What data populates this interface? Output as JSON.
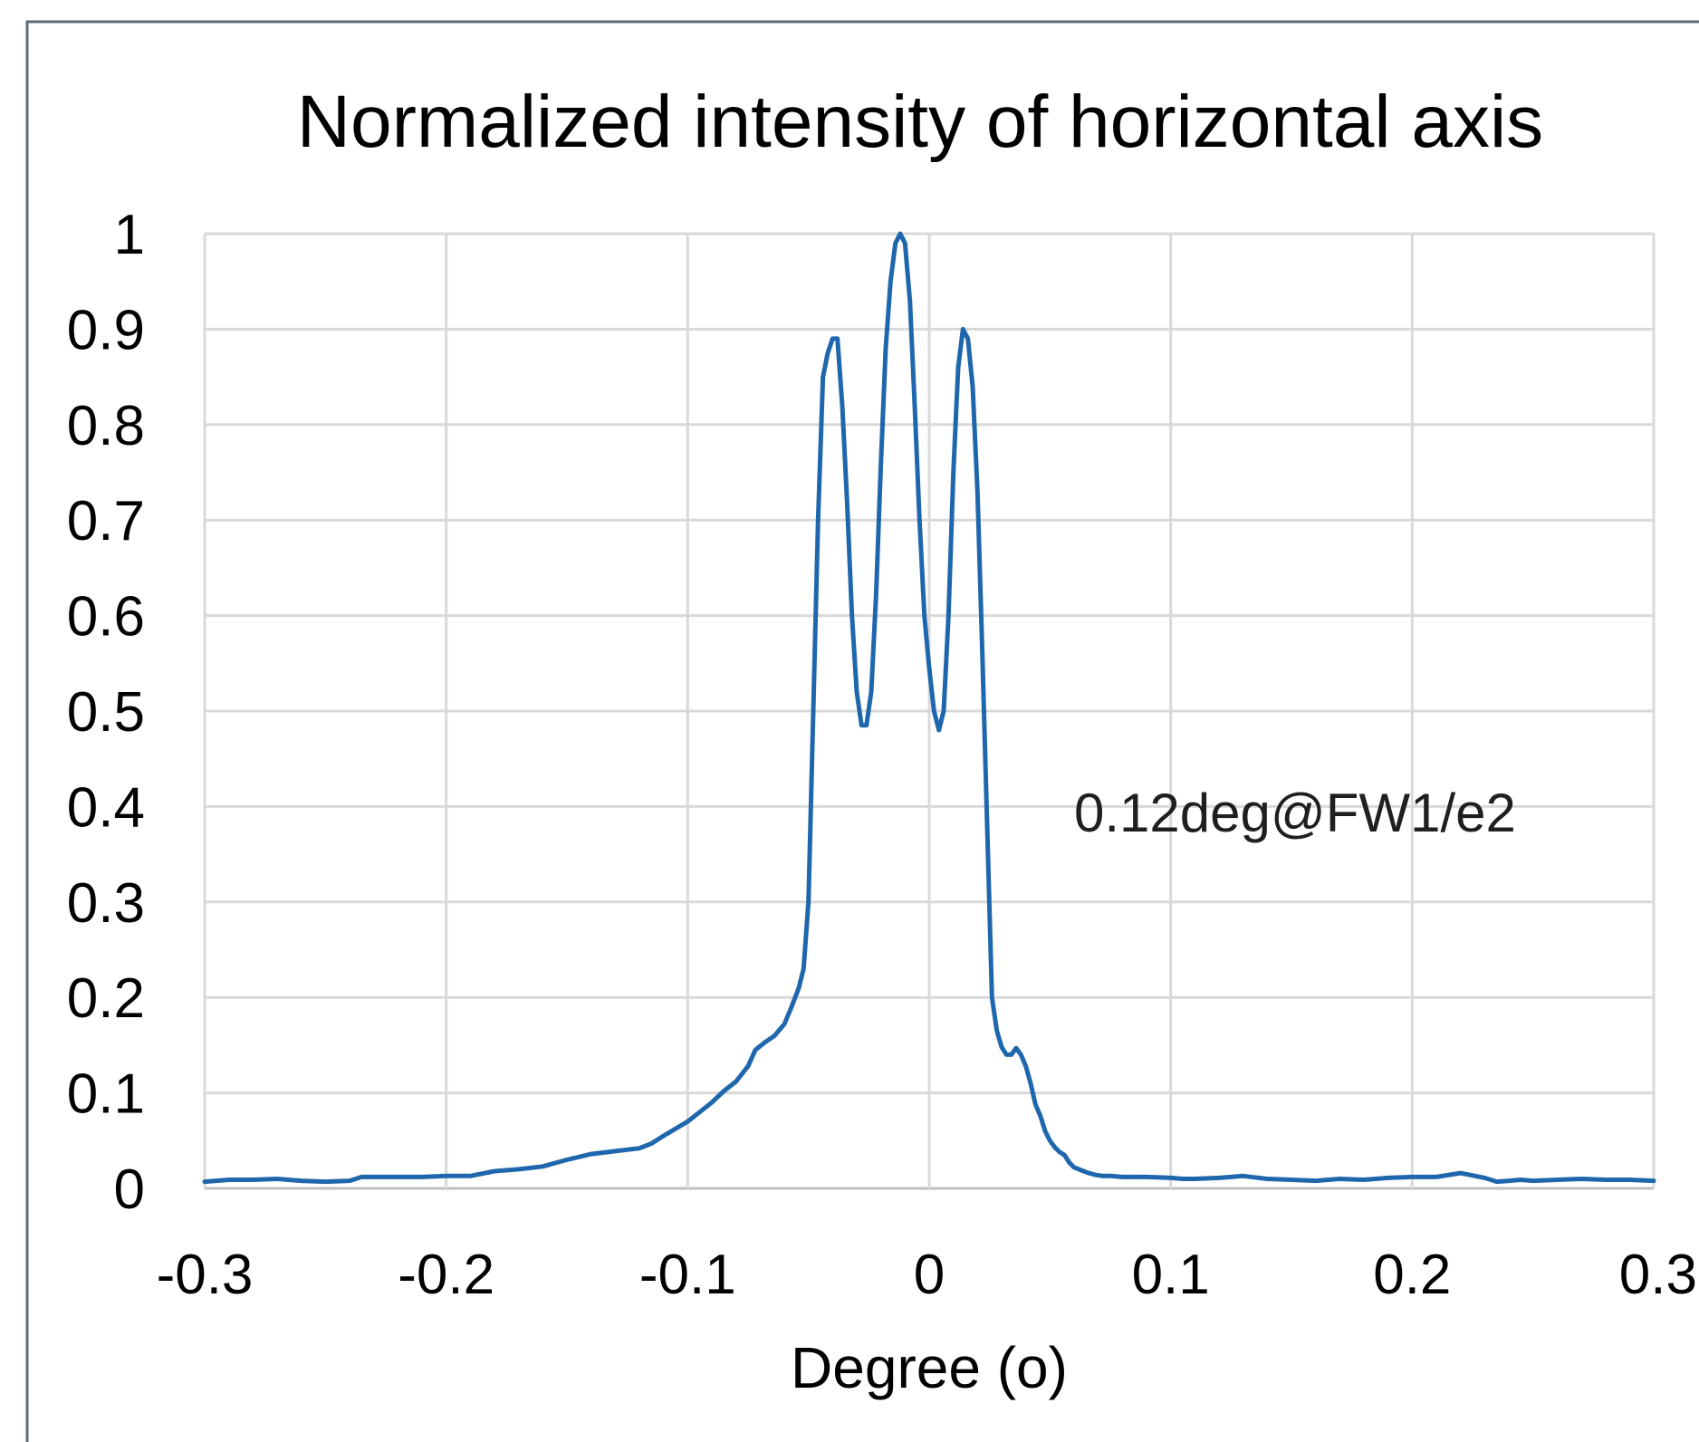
{
  "chart_data": {
    "type": "line",
    "title": "Normalized intensity of horizontal axis",
    "xlabel": "Degree (o)",
    "ylabel": "",
    "xlim": [
      -0.3,
      0.3
    ],
    "ylim": [
      0,
      1
    ],
    "x_ticks": [
      "-0.3",
      "-0.2",
      "-0.1",
      "0",
      "0.1",
      "0.2",
      "0.3"
    ],
    "y_ticks": [
      "0",
      "0.1",
      "0.2",
      "0.3",
      "0.4",
      "0.5",
      "0.6",
      "0.7",
      "0.8",
      "0.9",
      "1"
    ],
    "grid": true,
    "legend": "none",
    "annotation": "0.12deg@FW1/e2",
    "line_color": "#1f67ad",
    "series": [
      {
        "x": [
          -0.3,
          -0.29,
          -0.28,
          -0.27,
          -0.26,
          -0.25,
          -0.24,
          -0.235,
          -0.22,
          -0.21,
          -0.2,
          -0.19,
          -0.18,
          -0.17,
          -0.16,
          -0.15,
          -0.14,
          -0.13,
          -0.12,
          -0.115,
          -0.11,
          -0.1,
          -0.095,
          -0.09,
          -0.085,
          -0.08,
          -0.075,
          -0.072,
          -0.068,
          -0.064,
          -0.06,
          -0.057,
          -0.054,
          -0.052,
          -0.05,
          -0.048,
          -0.046,
          -0.044,
          -0.042,
          -0.04,
          -0.038,
          -0.036,
          -0.034,
          -0.032,
          -0.03,
          -0.028,
          -0.026,
          -0.024,
          -0.022,
          -0.02,
          -0.018,
          -0.016,
          -0.014,
          -0.012,
          -0.01,
          -0.008,
          -0.006,
          -0.004,
          -0.002,
          0,
          0.002,
          0.004,
          0.006,
          0.008,
          0.01,
          0.012,
          0.014,
          0.016,
          0.018,
          0.02,
          0.022,
          0.024,
          0.026,
          0.028,
          0.03,
          0.032,
          0.034,
          0.036,
          0.038,
          0.04,
          0.042,
          0.044,
          0.046,
          0.048,
          0.05,
          0.052,
          0.054,
          0.056,
          0.058,
          0.06,
          0.063,
          0.066,
          0.069,
          0.072,
          0.075,
          0.08,
          0.09,
          0.1,
          0.105,
          0.11,
          0.12,
          0.125,
          0.13,
          0.14,
          0.15,
          0.16,
          0.17,
          0.18,
          0.19,
          0.2,
          0.21,
          0.22,
          0.23,
          0.235,
          0.24,
          0.245,
          0.25,
          0.26,
          0.27,
          0.28,
          0.29,
          0.3
        ],
        "y": [
          0.007,
          0.009,
          0.009,
          0.01,
          0.008,
          0.007,
          0.008,
          0.012,
          0.012,
          0.012,
          0.013,
          0.013,
          0.018,
          0.02,
          0.023,
          0.03,
          0.036,
          0.039,
          0.042,
          0.047,
          0.055,
          0.07,
          0.08,
          0.09,
          0.102,
          0.112,
          0.128,
          0.145,
          0.153,
          0.16,
          0.172,
          0.19,
          0.21,
          0.23,
          0.3,
          0.5,
          0.7,
          0.85,
          0.875,
          0.89,
          0.89,
          0.82,
          0.72,
          0.6,
          0.52,
          0.485,
          0.485,
          0.52,
          0.62,
          0.76,
          0.88,
          0.95,
          0.99,
          1.0,
          0.99,
          0.93,
          0.82,
          0.7,
          0.6,
          0.545,
          0.5,
          0.48,
          0.5,
          0.6,
          0.75,
          0.86,
          0.9,
          0.89,
          0.84,
          0.73,
          0.56,
          0.38,
          0.2,
          0.165,
          0.148,
          0.14,
          0.14,
          0.147,
          0.14,
          0.128,
          0.11,
          0.088,
          0.076,
          0.06,
          0.05,
          0.043,
          0.038,
          0.035,
          0.027,
          0.022,
          0.019,
          0.016,
          0.014,
          0.013,
          0.013,
          0.012,
          0.012,
          0.011,
          0.01,
          0.01,
          0.011,
          0.012,
          0.013,
          0.01,
          0.009,
          0.008,
          0.01,
          0.009,
          0.011,
          0.012,
          0.012,
          0.016,
          0.011,
          0.007,
          0.008,
          0.009,
          0.008,
          0.009,
          0.01,
          0.009,
          0.009,
          0.008
        ]
      }
    ]
  }
}
